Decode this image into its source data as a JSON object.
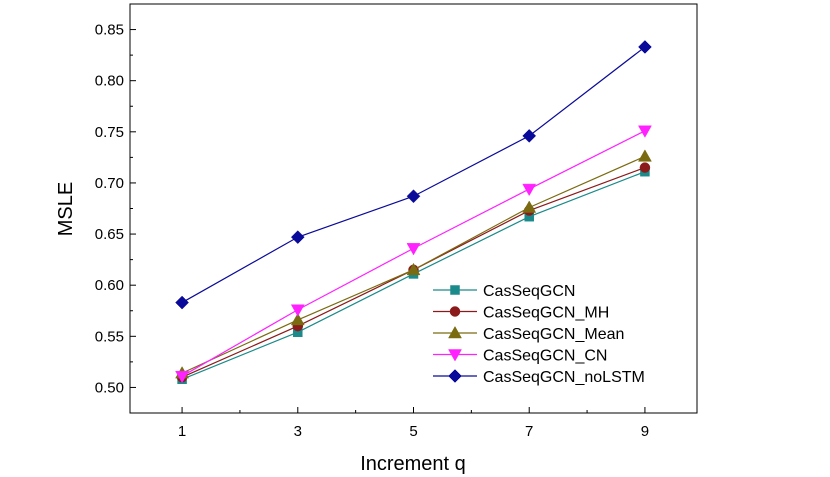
{
  "chart_data": {
    "type": "line",
    "title": "",
    "xlabel": "Increment q",
    "ylabel": "MSLE",
    "x": [
      1,
      3,
      5,
      7,
      9
    ],
    "x_tick_labels": [
      "1",
      "3",
      "5",
      "7",
      "9"
    ],
    "xlim": [
      0.1,
      9.9
    ],
    "ylim": [
      0.475,
      0.875
    ],
    "y_ticks": [
      0.5,
      0.55,
      0.6,
      0.65,
      0.7,
      0.75,
      0.8,
      0.85
    ],
    "y_tick_labels": [
      "0.50",
      "0.55",
      "0.60",
      "0.65",
      "0.70",
      "0.75",
      "0.80",
      "0.85"
    ],
    "grid": false,
    "legend_position": "bottom-right",
    "series": [
      {
        "name": "CasSeqGCN",
        "values": [
          0.508,
          0.554,
          0.611,
          0.667,
          0.711
        ],
        "color": "#1a8a8a",
        "marker": "square"
      },
      {
        "name": "CasSeqGCN_MH",
        "values": [
          0.51,
          0.56,
          0.615,
          0.673,
          0.715
        ],
        "color": "#8b1a1a",
        "marker": "circle"
      },
      {
        "name": "CasSeqGCN_Mean",
        "values": [
          0.514,
          0.566,
          0.615,
          0.676,
          0.726
        ],
        "color": "#7a6a10",
        "marker": "triangle-up"
      },
      {
        "name": "CasSeqGCN_CN",
        "values": [
          0.511,
          0.576,
          0.636,
          0.694,
          0.751
        ],
        "color": "#ff22ff",
        "marker": "triangle-down"
      },
      {
        "name": "CasSeqGCN_noLSTM",
        "values": [
          0.583,
          0.647,
          0.687,
          0.746,
          0.833
        ],
        "color": "#0a0a9a",
        "marker": "diamond"
      }
    ]
  }
}
